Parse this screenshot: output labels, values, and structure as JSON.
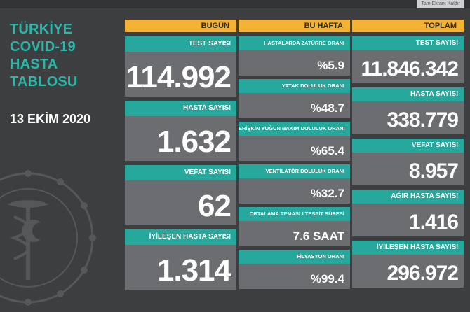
{
  "topbar": {
    "link_text": "Tam Ekranı Kaldır"
  },
  "title": {
    "lines": [
      "TÜRKİYE",
      "COVID-19",
      "HASTA",
      "TABLOSU"
    ]
  },
  "date": "13 EKİM 2020",
  "columns": {
    "today": {
      "header": "BUGÜN"
    },
    "week": {
      "header": "BU HAFTA"
    },
    "total": {
      "header": "TOPLAM"
    }
  },
  "today": [
    {
      "label": "TEST SAYISI",
      "value": "114.992"
    },
    {
      "label": "HASTA SAYISI",
      "value": "1.632"
    },
    {
      "label": "VEFAT SAYISI",
      "value": "62"
    },
    {
      "label": "İYİLEŞEN HASTA SAYISI",
      "value": "1.314"
    }
  ],
  "week": [
    {
      "label": "HASTALARDA ZATÜRRE ORANI",
      "value": "%5.9"
    },
    {
      "label": "YATAK DOLULUK ORANI",
      "value": "%48.7"
    },
    {
      "label": "ERİŞKİN YOĞUN BAKIM DOLULUK ORANI",
      "value": "%65.4"
    },
    {
      "label": "VENTİLATÖR DOLULUK ORANI",
      "value": "%32.7"
    },
    {
      "label": "ORTALAMA TEMASLI TESPİT SÜRESİ",
      "value": "7.6 SAAT"
    },
    {
      "label": "FİLYASYON ORANI",
      "value": "%99.4"
    }
  ],
  "total": [
    {
      "label": "TEST SAYISI",
      "value": "11.846.342"
    },
    {
      "label": "HASTA SAYISI",
      "value": "338.779"
    },
    {
      "label": "VEFAT SAYISI",
      "value": "8.957"
    },
    {
      "label": "AĞIR HASTA SAYISI",
      "value": "1.416"
    },
    {
      "label": "İYİLEŞEN HASTA SAYISI",
      "value": "296.972"
    }
  ],
  "colors": {
    "background": "#3d3e40",
    "accent_teal": "#26a89c",
    "title_teal": "#2ab7a9",
    "header_yellow": "#f5b335",
    "card_gray": "#6c6d70"
  },
  "icons": {
    "emblem": "ministry-of-health-emblem"
  }
}
